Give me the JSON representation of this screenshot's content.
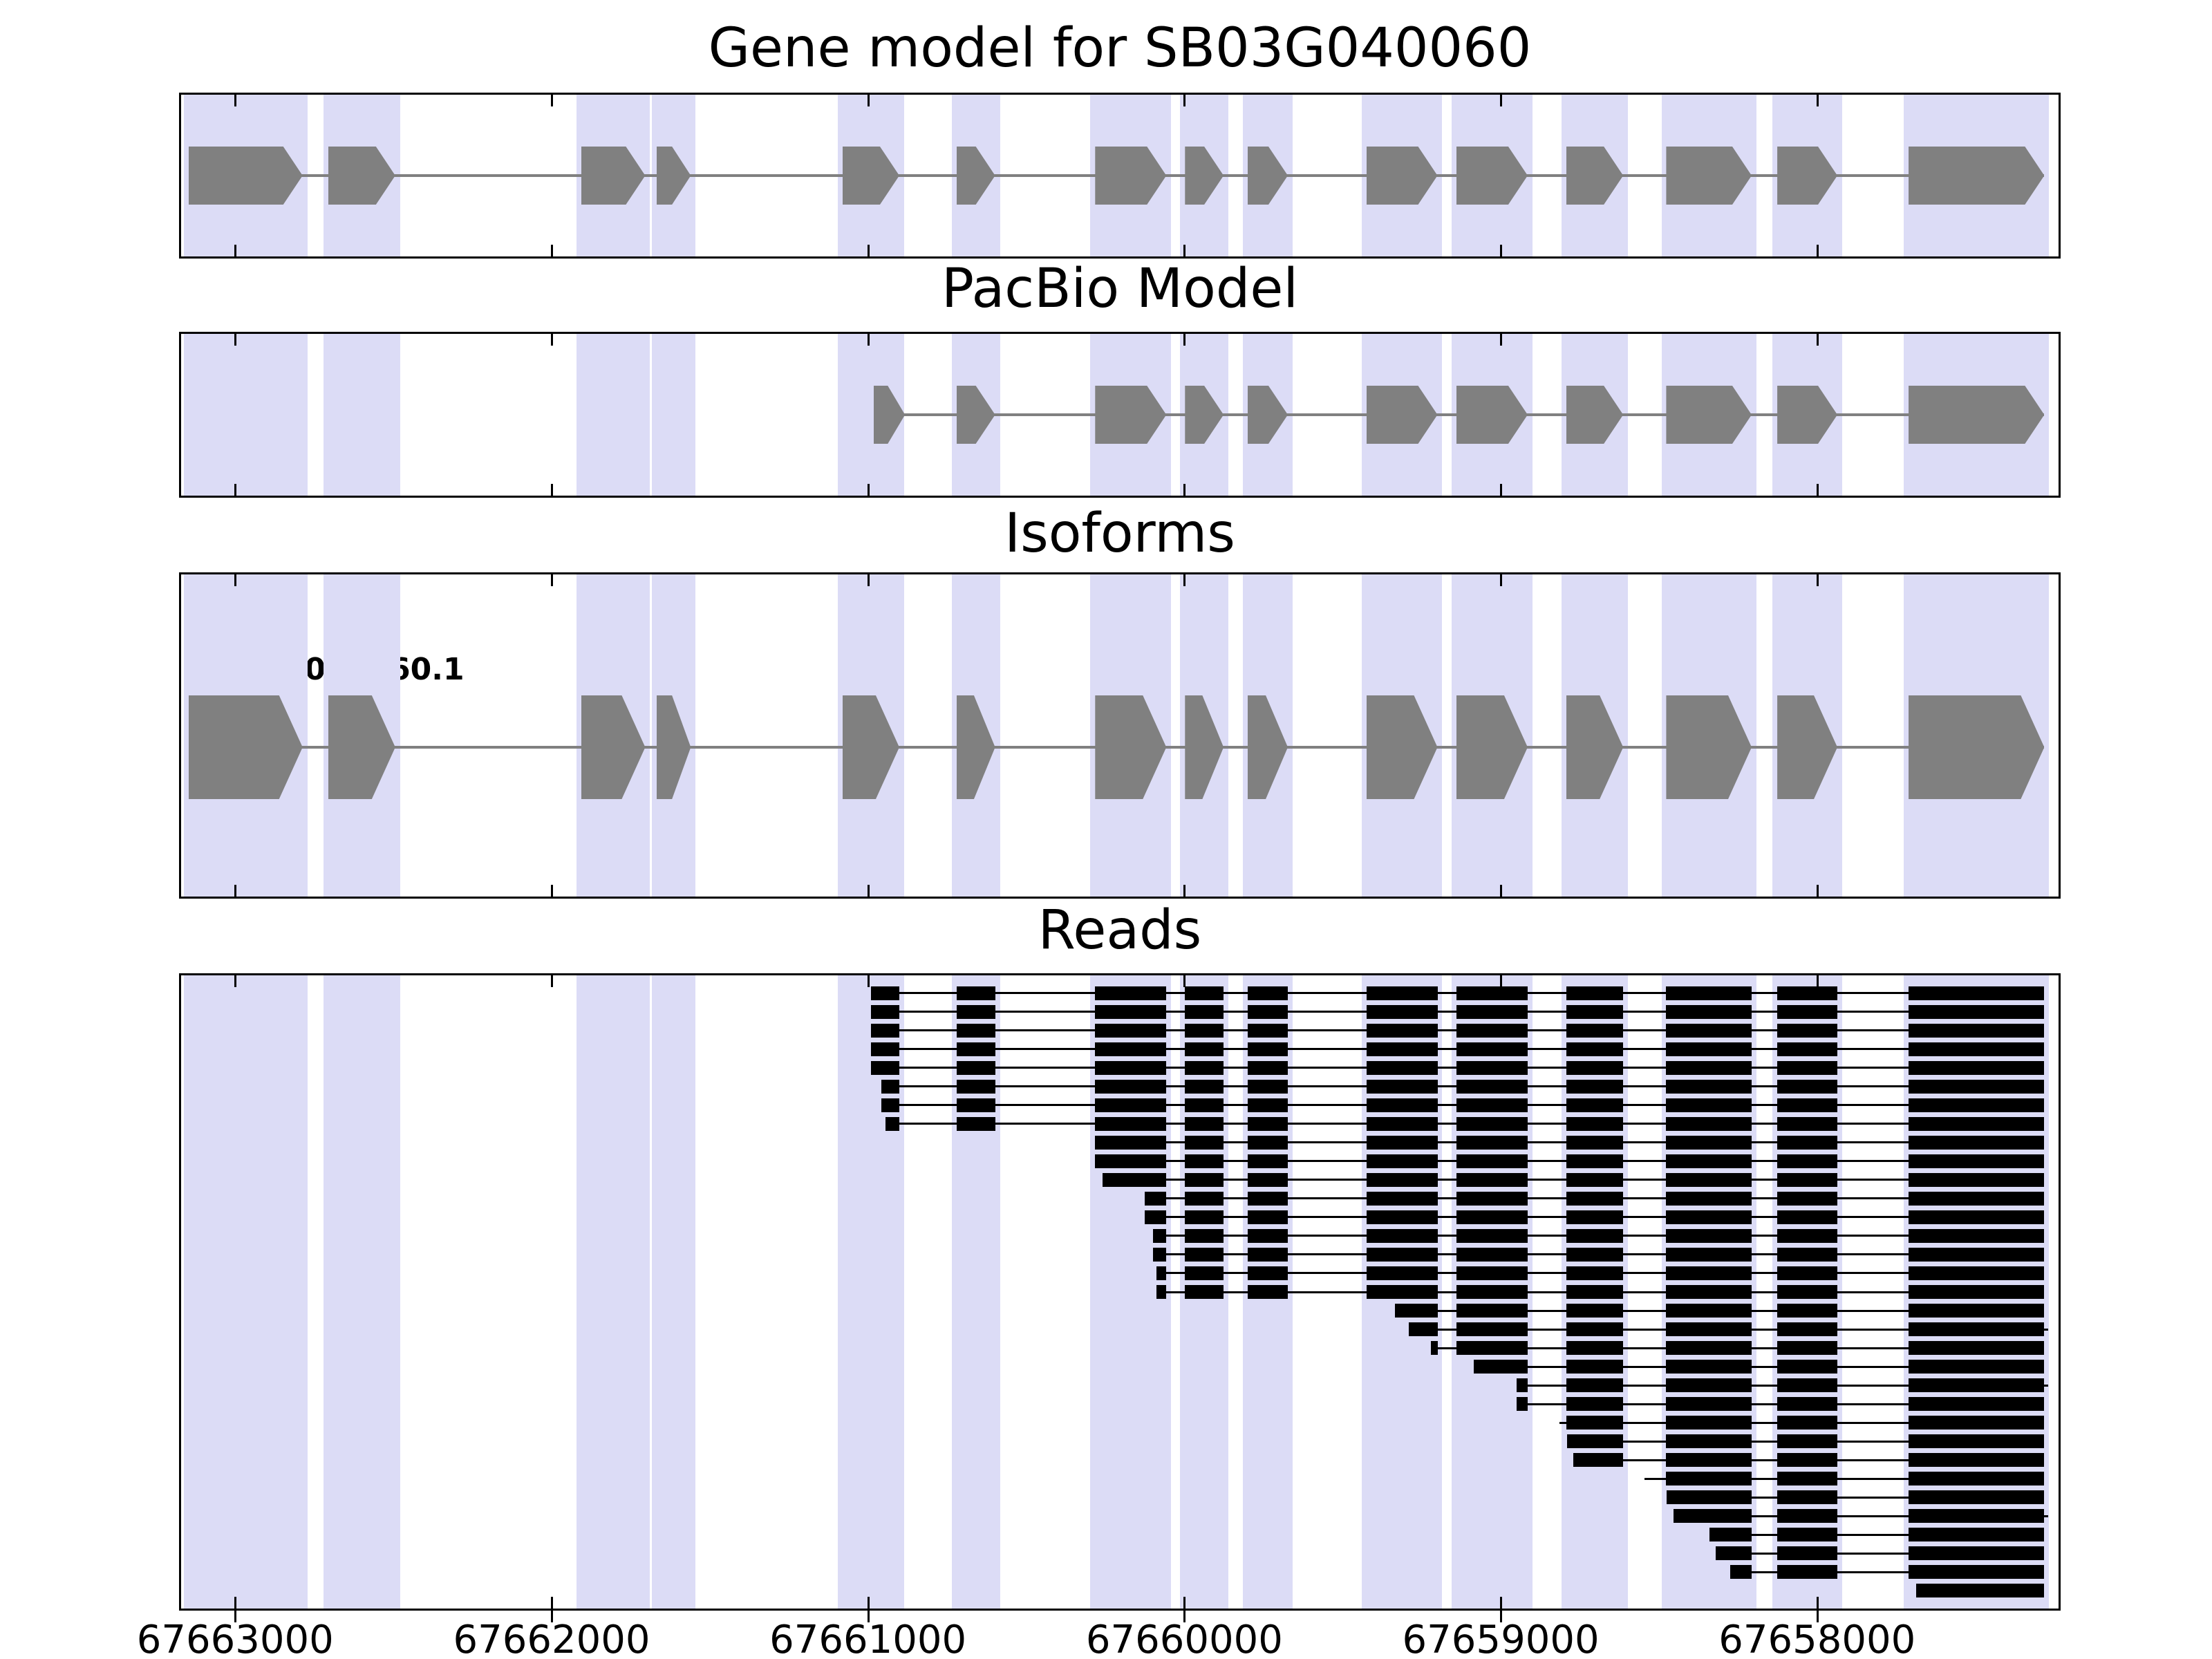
{
  "figure_title": "Gene model for SB03G040060",
  "chart_data": {
    "type": "genomic-tracks",
    "title": "Gene model for SB03G040060",
    "x_axis": {
      "left_bound": 67663171,
      "right_bound": 67657237,
      "reversed": true,
      "ticks": [
        67663000,
        67662000,
        67661000,
        67660000,
        67659000,
        67658000
      ],
      "tick_labels": [
        "67663000",
        "67662000",
        "67661000",
        "67660000",
        "67659000",
        "67658000"
      ]
    },
    "colors": {
      "highlight_band": "#dcdcf6",
      "exon": "#808080",
      "intron_line": "#808080",
      "read": "#000000",
      "panel_border": "#000000"
    },
    "band_pad_bp": 15,
    "tracks": [
      {
        "name": "Gene model for SB03G040060",
        "type": "gene",
        "strand_arrow": "right",
        "exons": [
          [
            67663148,
            67662787
          ],
          [
            67662706,
            67662494
          ],
          [
            67661907,
            67661704
          ],
          [
            67661668,
            67661560
          ],
          [
            67661081,
            67660901
          ],
          [
            67660720,
            67660598
          ],
          [
            67660282,
            67660057
          ],
          [
            67659998,
            67659876
          ],
          [
            67659800,
            67659673
          ],
          [
            67659425,
            67659200
          ],
          [
            67659141,
            67658915
          ],
          [
            67658793,
            67658613
          ],
          [
            67658477,
            67658207
          ],
          [
            67658126,
            67657936
          ],
          [
            67657711,
            67657282
          ]
        ]
      },
      {
        "name": "PacBio Model",
        "type": "gene",
        "strand_arrow": "right",
        "exons": [
          [
            67660982,
            67660883
          ],
          [
            67660720,
            67660598
          ],
          [
            67660282,
            67660057
          ],
          [
            67659998,
            67659876
          ],
          [
            67659800,
            67659673
          ],
          [
            67659425,
            67659200
          ],
          [
            67659141,
            67658915
          ],
          [
            67658793,
            67658613
          ],
          [
            67658477,
            67658207
          ],
          [
            67658126,
            67657936
          ],
          [
            67657711,
            67657282
          ]
        ]
      },
      {
        "name": "Isoforms",
        "type": "isoform",
        "label": "SB03G040060.1",
        "strand_arrow": "right",
        "exons": [
          [
            67663148,
            67662787
          ],
          [
            67662706,
            67662494
          ],
          [
            67661907,
            67661704
          ],
          [
            67661668,
            67661560
          ],
          [
            67661081,
            67660901
          ],
          [
            67660720,
            67660598
          ],
          [
            67660282,
            67660057
          ],
          [
            67659998,
            67659876
          ],
          [
            67659800,
            67659673
          ],
          [
            67659425,
            67659200
          ],
          [
            67659141,
            67658915
          ],
          [
            67658793,
            67658613
          ],
          [
            67658477,
            67658207
          ],
          [
            67658126,
            67657936
          ],
          [
            67657711,
            67657282
          ]
        ]
      },
      {
        "name": "Reads",
        "type": "reads",
        "reads": [
          {
            "start": 67660990,
            "end": 67657282
          },
          {
            "start": 67660990,
            "end": 67657282
          },
          {
            "start": 67660990,
            "end": 67657282
          },
          {
            "start": 67660990,
            "end": 67657282
          },
          {
            "start": 67660990,
            "end": 67657282
          },
          {
            "start": 67660958,
            "end": 67657282
          },
          {
            "start": 67660958,
            "end": 67657282
          },
          {
            "start": 67660944,
            "end": 67657282
          },
          {
            "start": 67660282,
            "end": 67657282
          },
          {
            "start": 67660282,
            "end": 67657282
          },
          {
            "start": 67660258,
            "end": 67657282
          },
          {
            "start": 67660125,
            "end": 67657282
          },
          {
            "start": 67660125,
            "end": 67657282
          },
          {
            "start": 67660100,
            "end": 67657282
          },
          {
            "start": 67660100,
            "end": 67657282
          },
          {
            "start": 67660088,
            "end": 67657282
          },
          {
            "start": 67660088,
            "end": 67657282
          },
          {
            "start": 67659335,
            "end": 67657282
          },
          {
            "start": 67659290,
            "end": 67657270
          },
          {
            "start": 67659220,
            "end": 67657282
          },
          {
            "start": 67659085,
            "end": 67657282
          },
          {
            "start": 67658950,
            "end": 67657270
          },
          {
            "start": 67658950,
            "end": 67657282
          },
          {
            "start": 67658815,
            "end": 67657282
          },
          {
            "start": 67658790,
            "end": 67657282
          },
          {
            "start": 67658770,
            "end": 67657282
          },
          {
            "start": 67658545,
            "end": 67657282
          },
          {
            "start": 67658475,
            "end": 67657282
          },
          {
            "start": 67658455,
            "end": 67657270
          },
          {
            "start": 67658340,
            "end": 67657282
          },
          {
            "start": 67658320,
            "end": 67657282
          },
          {
            "start": 67658275,
            "end": 67657282
          },
          {
            "start": 67657688,
            "end": 67657282
          }
        ]
      }
    ]
  }
}
